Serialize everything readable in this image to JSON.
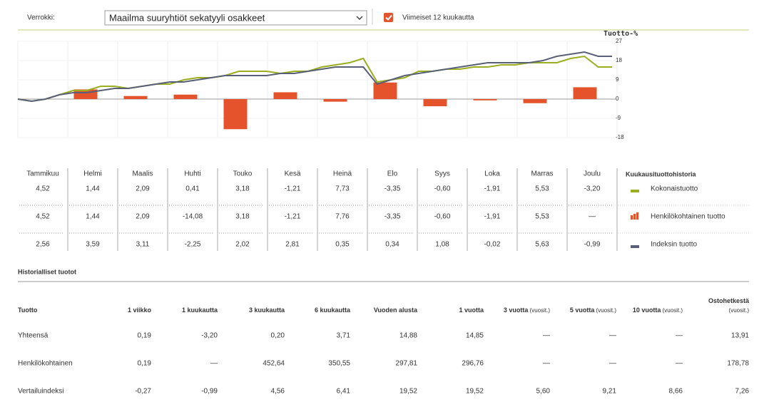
{
  "header": {
    "label": "Verrokki:",
    "select": "Maailma suuryhtiöt sekatyyli osakkeet",
    "checkbox": "Viimeiset 12 kuukautta"
  },
  "chart_data": {
    "type": "line",
    "y_label": "Tuotto-%",
    "ylim": [
      -18,
      27
    ],
    "yticks": [
      27,
      18,
      9,
      0,
      -9,
      -18
    ],
    "bars": {
      "name": "Henkilökohtainen tuotto",
      "color": "#e4532c",
      "values": [
        4.52,
        1.44,
        2.09,
        -14.08,
        3.18,
        -1.21,
        7.76,
        -3.35,
        -0.6,
        -1.91,
        5.53,
        null
      ]
    },
    "series": [
      {
        "name": "Kokonaistuotto",
        "color": "#9aae1f",
        "values": [
          0,
          -1,
          0,
          2,
          4,
          4,
          6,
          6,
          5,
          6,
          7,
          7,
          9,
          10,
          10,
          11,
          13,
          13,
          13,
          12,
          13,
          13,
          15,
          16,
          17,
          19,
          8,
          9,
          10,
          13,
          13,
          14,
          14,
          15,
          15,
          16,
          16,
          17,
          17,
          17,
          19,
          20,
          15,
          15
        ]
      },
      {
        "name": "Indeksin tuotto",
        "color": "#5a5f78",
        "values": [
          0,
          -1,
          0,
          2,
          3,
          3,
          4,
          5,
          5,
          6,
          7,
          8,
          8,
          9,
          10,
          11,
          11,
          11,
          11,
          12,
          12,
          13,
          14,
          15,
          15,
          15,
          7,
          9,
          11,
          12,
          13,
          14,
          15,
          16,
          17,
          17,
          17,
          17,
          18,
          20,
          21,
          22,
          20,
          20
        ]
      }
    ]
  },
  "monthly": {
    "months": [
      "Tammikuu",
      "Helmi",
      "Maalis",
      "Huhti",
      "Touko",
      "Kesä",
      "Heinä",
      "Elo",
      "Syys",
      "Loka",
      "Marras",
      "Joulu"
    ],
    "rows": [
      [
        "4,52",
        "1,44",
        "2,09",
        "0,41",
        "3,18",
        "-1,21",
        "7,73",
        "-3,35",
        "-0,60",
        "-1,91",
        "5,53",
        "-3,20"
      ],
      [
        "4,52",
        "1,44",
        "2,09",
        "-14,08",
        "3,18",
        "-1,21",
        "7,76",
        "-3,35",
        "-0,60",
        "-1,91",
        "5,53",
        "—"
      ],
      [
        "2,56",
        "3,59",
        "3,11",
        "-2,25",
        "2,02",
        "2,81",
        "0,35",
        "0,34",
        "1,08",
        "-0,02",
        "5,63",
        "-0,99"
      ]
    ],
    "legend_title": "Kuukausituottohistoria",
    "legend": [
      "Kokonaistuotto",
      "Henkilökohtainen tuotto",
      "Indeksin tuotto"
    ]
  },
  "history": {
    "title": "Historialliset tuotot",
    "headers": [
      {
        "main": "Tuotto"
      },
      {
        "main": "1 viikko"
      },
      {
        "main": "1 kuukautta"
      },
      {
        "main": "3 kuukautta"
      },
      {
        "main": "6 kuukautta"
      },
      {
        "main": "Vuoden alusta"
      },
      {
        "main": "1 vuotta"
      },
      {
        "main": "3 vuotta",
        "sub": "(vuosit.)"
      },
      {
        "main": "5 vuotta",
        "sub": "(vuosit.)"
      },
      {
        "main": "10 vuotta",
        "sub": "(vuosit.)"
      },
      {
        "main": "Ostohetkestä",
        "sub": "(vuosit.)"
      }
    ],
    "rows": [
      [
        "Yhteensä",
        "0,19",
        "-3,20",
        "0,20",
        "3,71",
        "14,88",
        "14,85",
        "—",
        "—",
        "—",
        "13,91"
      ],
      [
        "Henkilökohtainen",
        "0,19",
        "—",
        "452,64",
        "350,55",
        "297,81",
        "296,76",
        "—",
        "—",
        "—",
        "178,78"
      ],
      [
        "Vertailuindeksi",
        "-0,27",
        "-0,99",
        "4,56",
        "6,41",
        "19,52",
        "19,52",
        "5,60",
        "9,21",
        "8,66",
        "7,26"
      ]
    ]
  }
}
